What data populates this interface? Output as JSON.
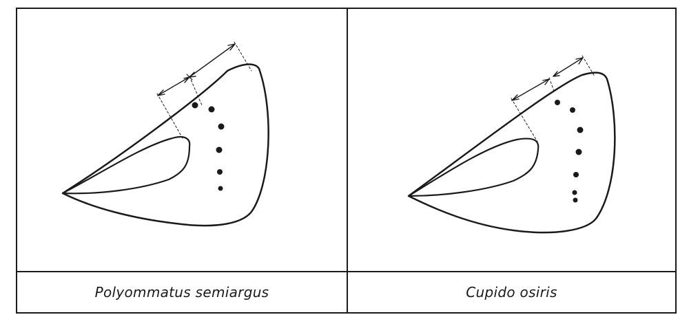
{
  "panels": [
    {
      "id": "left",
      "caption": "Polyommatus semiargus",
      "spot_count": 6
    },
    {
      "id": "right",
      "caption": "Cupido osiris",
      "spot_count": 7
    }
  ],
  "colors": {
    "ink": "#1a1a1a",
    "background": "#ffffff"
  }
}
